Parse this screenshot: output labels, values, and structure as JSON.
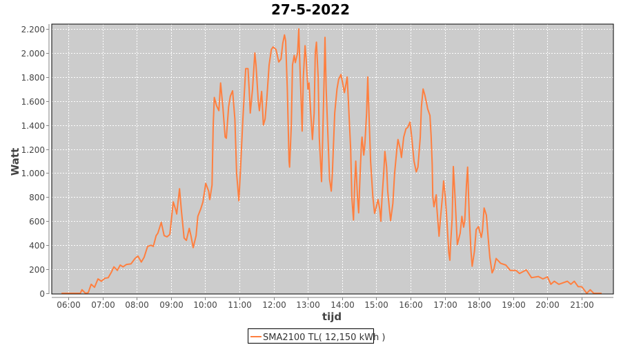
{
  "chart_data": {
    "type": "line",
    "title": "27-5-2022",
    "xlabel": "tijd",
    "ylabel": "Watt",
    "xlim": [
      "05:48",
      "21:48"
    ],
    "ylim": [
      0,
      2250
    ],
    "x_ticks": [
      "06:00",
      "07:00",
      "08:00",
      "09:00",
      "10:00",
      "11:00",
      "12:00",
      "13:00",
      "14:00",
      "15:00",
      "16:00",
      "17:00",
      "18:00",
      "19:00",
      "20:00",
      "21:00"
    ],
    "y_ticks": [
      0,
      200,
      400,
      600,
      800,
      1000,
      1200,
      1400,
      1600,
      1800,
      2000,
      2200
    ],
    "y_tick_labels": [
      "0",
      "200",
      "400",
      "600",
      "800",
      "1.000",
      "1.200",
      "1.400",
      "1.600",
      "1.800",
      "2.000",
      "2.200"
    ],
    "grid": true,
    "legend_position": "bottom",
    "colors": {
      "series": "#ff7f3f",
      "plot_background": "#cccccc",
      "grid": "#ffffff"
    },
    "series": [
      {
        "name": "SMA2100 TL( 12,150 kWh )",
        "points": [
          [
            "05:48",
            0
          ],
          [
            "06:21",
            0
          ],
          [
            "06:24",
            30
          ],
          [
            "06:30",
            0
          ],
          [
            "06:35",
            5
          ],
          [
            "06:40",
            75
          ],
          [
            "06:46",
            50
          ],
          [
            "06:52",
            120
          ],
          [
            "06:58",
            100
          ],
          [
            "07:04",
            125
          ],
          [
            "07:10",
            130
          ],
          [
            "07:16",
            180
          ],
          [
            "07:20",
            220
          ],
          [
            "07:26",
            190
          ],
          [
            "07:31",
            235
          ],
          [
            "07:36",
            220
          ],
          [
            "07:42",
            240
          ],
          [
            "07:50",
            245
          ],
          [
            "07:57",
            290
          ],
          [
            "08:02",
            310
          ],
          [
            "08:08",
            260
          ],
          [
            "08:13",
            300
          ],
          [
            "08:19",
            390
          ],
          [
            "08:25",
            400
          ],
          [
            "08:29",
            390
          ],
          [
            "08:34",
            480
          ],
          [
            "08:37",
            500
          ],
          [
            "08:43",
            590
          ],
          [
            "08:48",
            480
          ],
          [
            "08:53",
            470
          ],
          [
            "08:58",
            490
          ],
          [
            "09:04",
            760
          ],
          [
            "09:08",
            700
          ],
          [
            "09:10",
            660
          ],
          [
            "09:15",
            870
          ],
          [
            "09:18",
            700
          ],
          [
            "09:23",
            460
          ],
          [
            "09:27",
            440
          ],
          [
            "09:32",
            540
          ],
          [
            "09:35",
            480
          ],
          [
            "09:39",
            380
          ],
          [
            "09:44",
            480
          ],
          [
            "09:47",
            640
          ],
          [
            "09:52",
            700
          ],
          [
            "09:56",
            760
          ],
          [
            "10:01",
            915
          ],
          [
            "10:06",
            850
          ],
          [
            "10:08",
            780
          ],
          [
            "10:12",
            900
          ],
          [
            "10:14",
            1400
          ],
          [
            "10:16",
            1630
          ],
          [
            "10:20",
            1560
          ],
          [
            "10:24",
            1520
          ],
          [
            "10:27",
            1750
          ],
          [
            "10:31",
            1550
          ],
          [
            "10:35",
            1300
          ],
          [
            "10:37",
            1290
          ],
          [
            "10:41",
            1550
          ],
          [
            "10:44",
            1640
          ],
          [
            "10:48",
            1685
          ],
          [
            "10:52",
            1450
          ],
          [
            "10:55",
            1000
          ],
          [
            "10:59",
            770
          ],
          [
            "11:02",
            1050
          ],
          [
            "11:06",
            1450
          ],
          [
            "11:11",
            1870
          ],
          [
            "11:15",
            1870
          ],
          [
            "11:17",
            1700
          ],
          [
            "11:19",
            1500
          ],
          [
            "11:23",
            1700
          ],
          [
            "11:27",
            2000
          ],
          [
            "11:29",
            1900
          ],
          [
            "11:33",
            1600
          ],
          [
            "11:35",
            1520
          ],
          [
            "11:39",
            1680
          ],
          [
            "11:42",
            1400
          ],
          [
            "11:45",
            1450
          ],
          [
            "11:48",
            1620
          ],
          [
            "11:52",
            1900
          ],
          [
            "11:56",
            2030
          ],
          [
            "11:59",
            2050
          ],
          [
            "12:04",
            2030
          ],
          [
            "12:09",
            1925
          ],
          [
            "12:13",
            1950
          ],
          [
            "12:16",
            2080
          ],
          [
            "12:19",
            2150
          ],
          [
            "12:21",
            2100
          ],
          [
            "12:24",
            1700
          ],
          [
            "12:27",
            1100
          ],
          [
            "12:28",
            1050
          ],
          [
            "12:31",
            1400
          ],
          [
            "12:33",
            1900
          ],
          [
            "12:36",
            1980
          ],
          [
            "12:38",
            1920
          ],
          [
            "12:42",
            2000
          ],
          [
            "12:44",
            2200
          ],
          [
            "12:46",
            1900
          ],
          [
            "12:49",
            1500
          ],
          [
            "12:50",
            1350
          ],
          [
            "12:52",
            1800
          ],
          [
            "12:55",
            2060
          ],
          [
            "12:57",
            1950
          ],
          [
            "13:00",
            1700
          ],
          [
            "13:02",
            1750
          ],
          [
            "13:05",
            1500
          ],
          [
            "13:08",
            1280
          ],
          [
            "13:11",
            1500
          ],
          [
            "13:13",
            2000
          ],
          [
            "13:15",
            2090
          ],
          [
            "13:18",
            1800
          ],
          [
            "13:20",
            1300
          ],
          [
            "13:24",
            930
          ],
          [
            "13:26",
            1300
          ],
          [
            "13:29",
            1900
          ],
          [
            "13:30",
            2130
          ],
          [
            "13:32",
            1700
          ],
          [
            "13:36",
            1200
          ],
          [
            "13:38",
            950
          ],
          [
            "13:41",
            850
          ],
          [
            "13:43",
            1000
          ],
          [
            "13:47",
            1500
          ],
          [
            "13:51",
            1700
          ],
          [
            "13:54",
            1780
          ],
          [
            "13:58",
            1820
          ],
          [
            "14:01",
            1750
          ],
          [
            "14:04",
            1670
          ],
          [
            "14:06",
            1720
          ],
          [
            "14:09",
            1800
          ],
          [
            "14:11",
            1600
          ],
          [
            "14:15",
            1200
          ],
          [
            "14:17",
            800
          ],
          [
            "14:20",
            610
          ],
          [
            "14:22",
            900
          ],
          [
            "14:24",
            1100
          ],
          [
            "14:27",
            800
          ],
          [
            "14:29",
            670
          ],
          [
            "14:32",
            1050
          ],
          [
            "14:34",
            1250
          ],
          [
            "14:35",
            1300
          ],
          [
            "14:38",
            1150
          ],
          [
            "14:40",
            1250
          ],
          [
            "14:43",
            1500
          ],
          [
            "14:45",
            1800
          ],
          [
            "14:47",
            1500
          ],
          [
            "14:50",
            1100
          ],
          [
            "14:54",
            800
          ],
          [
            "14:57",
            665
          ],
          [
            "15:00",
            720
          ],
          [
            "15:03",
            780
          ],
          [
            "15:06",
            700
          ],
          [
            "15:08",
            600
          ],
          [
            "15:10",
            800
          ],
          [
            "15:13",
            1000
          ],
          [
            "15:15",
            1180
          ],
          [
            "15:18",
            1050
          ],
          [
            "15:20",
            850
          ],
          [
            "15:23",
            700
          ],
          [
            "15:25",
            605
          ],
          [
            "15:29",
            750
          ],
          [
            "15:32",
            1000
          ],
          [
            "15:36",
            1200
          ],
          [
            "15:38",
            1280
          ],
          [
            "15:42",
            1200
          ],
          [
            "15:44",
            1130
          ],
          [
            "15:48",
            1300
          ],
          [
            "15:52",
            1370
          ],
          [
            "15:55",
            1380
          ],
          [
            "15:59",
            1425
          ],
          [
            "16:02",
            1300
          ],
          [
            "16:06",
            1100
          ],
          [
            "16:10",
            1010
          ],
          [
            "16:13",
            1050
          ],
          [
            "16:17",
            1300
          ],
          [
            "16:19",
            1550
          ],
          [
            "16:22",
            1700
          ],
          [
            "16:25",
            1650
          ],
          [
            "16:29",
            1560
          ],
          [
            "16:30",
            1535
          ],
          [
            "16:34",
            1480
          ],
          [
            "16:36",
            1310
          ],
          [
            "16:38",
            1070
          ],
          [
            "16:39",
            810
          ],
          [
            "16:41",
            720
          ],
          [
            "16:45",
            820
          ],
          [
            "16:46",
            720
          ],
          [
            "16:50",
            475
          ],
          [
            "16:52",
            600
          ],
          [
            "16:56",
            810
          ],
          [
            "16:58",
            935
          ],
          [
            "17:01",
            800
          ],
          [
            "17:03",
            660
          ],
          [
            "17:07",
            340
          ],
          [
            "17:09",
            275
          ],
          [
            "17:10",
            400
          ],
          [
            "17:13",
            620
          ],
          [
            "17:15",
            1055
          ],
          [
            "17:18",
            800
          ],
          [
            "17:21",
            500
          ],
          [
            "17:22",
            405
          ],
          [
            "17:27",
            500
          ],
          [
            "17:30",
            640
          ],
          [
            "17:33",
            550
          ],
          [
            "17:35",
            600
          ],
          [
            "17:38",
            900
          ],
          [
            "17:40",
            1050
          ],
          [
            "17:43",
            640
          ],
          [
            "17:46",
            350
          ],
          [
            "17:48",
            225
          ],
          [
            "17:52",
            350
          ],
          [
            "17:55",
            530
          ],
          [
            "17:59",
            555
          ],
          [
            "18:04",
            465
          ],
          [
            "18:06",
            520
          ],
          [
            "18:09",
            710
          ],
          [
            "18:13",
            650
          ],
          [
            "18:16",
            470
          ],
          [
            "18:19",
            300
          ],
          [
            "18:23",
            170
          ],
          [
            "18:26",
            200
          ],
          [
            "18:30",
            290
          ],
          [
            "18:38",
            250
          ],
          [
            "18:47",
            235
          ],
          [
            "18:55",
            190
          ],
          [
            "19:05",
            190
          ],
          [
            "19:11",
            165
          ],
          [
            "19:23",
            195
          ],
          [
            "19:32",
            130
          ],
          [
            "19:44",
            140
          ],
          [
            "19:52",
            120
          ],
          [
            "20:00",
            137
          ],
          [
            "20:06",
            75
          ],
          [
            "20:12",
            100
          ],
          [
            "20:20",
            75
          ],
          [
            "20:35",
            100
          ],
          [
            "20:41",
            75
          ],
          [
            "20:47",
            100
          ],
          [
            "20:54",
            55
          ],
          [
            "21:00",
            55
          ],
          [
            "21:05",
            25
          ],
          [
            "21:09",
            0
          ],
          [
            "21:15",
            30
          ],
          [
            "21:21",
            0
          ],
          [
            "21:35",
            0
          ]
        ]
      }
    ]
  }
}
